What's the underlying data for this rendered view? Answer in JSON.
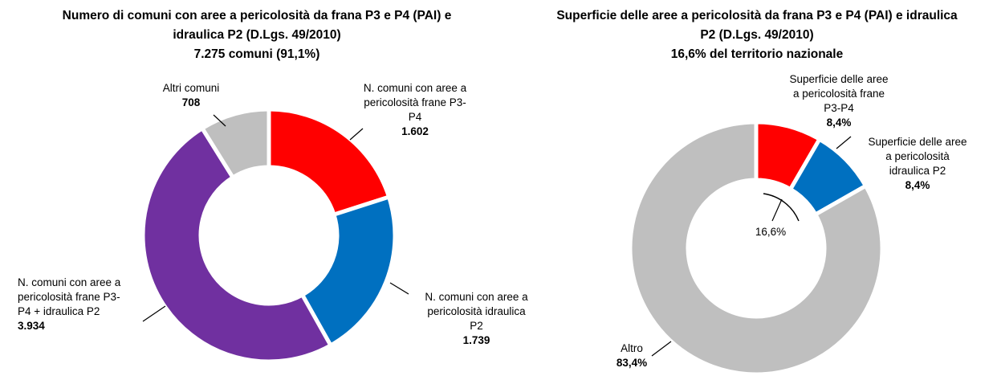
{
  "chart_data": [
    {
      "type": "pie",
      "title_lines": [
        "Numero di comuni con aree a pericolosità da frana P3 e P4 (PAI) e",
        "idraulica P2 (D.Lgs. 49/2010)",
        "7.275 comuni (91,1%)"
      ],
      "slices": [
        {
          "label_lines": [
            "N. comuni con aree a",
            "pericolosità frane P3-",
            "P4"
          ],
          "value_label": "1.602",
          "value": 1602,
          "color": "#FF0000"
        },
        {
          "label_lines": [
            "N. comuni con aree a",
            "pericolosità idraulica",
            "P2"
          ],
          "value_label": "1.739",
          "value": 1739,
          "color": "#0070C0"
        },
        {
          "label_lines": [
            "N. comuni con aree a",
            "pericolosità frane P3-",
            "P4 + idraulica P2"
          ],
          "value_label": "3.934",
          "value": 3934,
          "color": "#7030A0"
        },
        {
          "label_lines": [
            "Altri comuni"
          ],
          "value_label": "708",
          "value": 708,
          "color": "#BFBFBF"
        }
      ]
    },
    {
      "type": "pie",
      "title_lines": [
        "Superficie delle aree a pericolosità da frana P3 e P4 (PAI) e idraulica",
        "P2 (D.Lgs. 49/2010)",
        "16,6% del territorio nazionale"
      ],
      "slices": [
        {
          "label_lines": [
            "Superficie delle aree",
            "a pericolosità frane",
            "P3-P4"
          ],
          "value_label": "8,4%",
          "value": 8.4,
          "color": "#FF0000"
        },
        {
          "label_lines": [
            "Superficie delle aree",
            "a pericolosità",
            "idraulica P2"
          ],
          "value_label": "8,4%",
          "value": 8.4,
          "color": "#0070C0"
        },
        {
          "label_lines": [
            "Altro"
          ],
          "value_label": "83,4%",
          "value": 83.4,
          "color": "#BFBFBF"
        }
      ],
      "annotation": "16,6%"
    }
  ]
}
